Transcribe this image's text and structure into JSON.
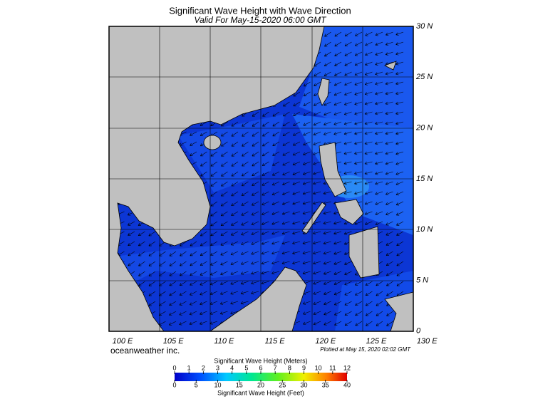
{
  "title": "Significant Wave Height with Wave Direction",
  "subtitle": "Valid For May-15-2020 06:00 GMT",
  "map": {
    "lon_labels": [
      "100 E",
      "105 E",
      "110 E",
      "115 E",
      "120 E",
      "125 E",
      "130 E"
    ],
    "lat_labels": [
      "30 N",
      "25 N",
      "20 N",
      "15 N",
      "10 N",
      "5 N",
      "0"
    ]
  },
  "credit": "oceanweather inc.",
  "plotted": "Plotted at May 15, 2020 02:02 GMT",
  "colorbar": {
    "meters_title": "Significant Wave Height (Meters)",
    "meters_ticks": [
      0,
      1,
      2,
      3,
      4,
      5,
      6,
      7,
      8,
      9,
      10,
      11,
      12
    ],
    "feet_ticks": [
      0,
      5,
      10,
      15,
      20,
      25,
      30,
      35,
      40
    ],
    "feet_title": "Significant Wave Height (Feet)"
  }
}
